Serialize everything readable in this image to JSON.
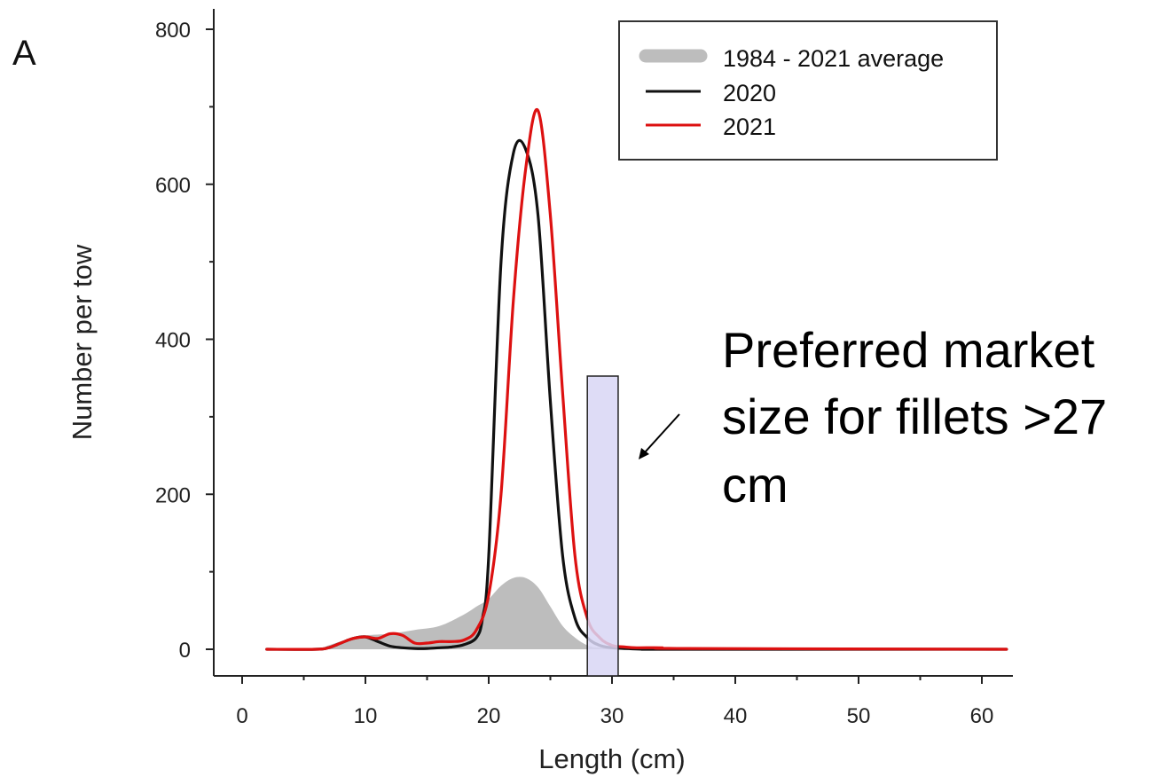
{
  "chart_data": {
    "type": "line",
    "panel_label": "A",
    "xlabel": "Length (cm)",
    "ylabel": "Number per tow",
    "xlim": [
      0,
      62
    ],
    "ylim": [
      0,
      800
    ],
    "x_ticks": [
      0,
      10,
      20,
      30,
      40,
      50,
      60
    ],
    "y_ticks": [
      0,
      200,
      400,
      600,
      800
    ],
    "legend_position": "top-right",
    "series": [
      {
        "name": "1984 - 2021 average",
        "style": "area",
        "color": "#bdbdbd",
        "x": [
          2,
          6,
          7,
          9,
          10,
          12,
          14,
          16,
          18,
          19,
          20,
          21,
          22,
          23,
          24,
          25,
          26,
          27,
          28,
          29,
          30,
          31,
          32,
          35,
          40,
          62
        ],
        "y": [
          0,
          0,
          5,
          15,
          18,
          20,
          25,
          30,
          45,
          55,
          65,
          82,
          92,
          92,
          80,
          55,
          30,
          15,
          5,
          2,
          1,
          0,
          0,
          0,
          0,
          0
        ]
      },
      {
        "name": "2020",
        "style": "line",
        "color": "#111111",
        "x": [
          2,
          6,
          7,
          8,
          9,
          10,
          11,
          12,
          13,
          14,
          15,
          16,
          17,
          18,
          19,
          19.5,
          20,
          21,
          22,
          23,
          24,
          25,
          26,
          27,
          28,
          29,
          30,
          31,
          33,
          35,
          62
        ],
        "y": [
          0,
          0,
          2,
          8,
          14,
          16,
          10,
          4,
          2,
          1,
          1,
          2,
          3,
          6,
          15,
          40,
          120,
          500,
          640,
          645,
          560,
          320,
          120,
          40,
          15,
          5,
          2,
          1,
          0,
          0,
          0
        ]
      },
      {
        "name": "2021",
        "style": "line",
        "color": "#dd1111",
        "x": [
          2,
          6,
          7,
          8,
          9,
          10,
          11,
          12,
          13,
          14,
          15,
          16,
          17,
          18,
          19,
          20,
          21,
          22,
          23,
          24,
          25,
          26,
          27,
          28,
          29,
          30,
          31,
          32,
          34,
          36,
          62
        ],
        "y": [
          0,
          0,
          2,
          8,
          14,
          16,
          14,
          20,
          18,
          8,
          8,
          10,
          10,
          12,
          25,
          70,
          200,
          450,
          620,
          695,
          560,
          330,
          120,
          40,
          15,
          5,
          3,
          2,
          2,
          1,
          0
        ]
      }
    ],
    "annotation": {
      "lines": [
        "Preferred market",
        "size for fillets >27",
        "cm"
      ],
      "highlight_range": [
        28,
        30.5
      ],
      "highlight_fill": "#d8d6f4",
      "highlight_stroke": "#222222"
    }
  }
}
